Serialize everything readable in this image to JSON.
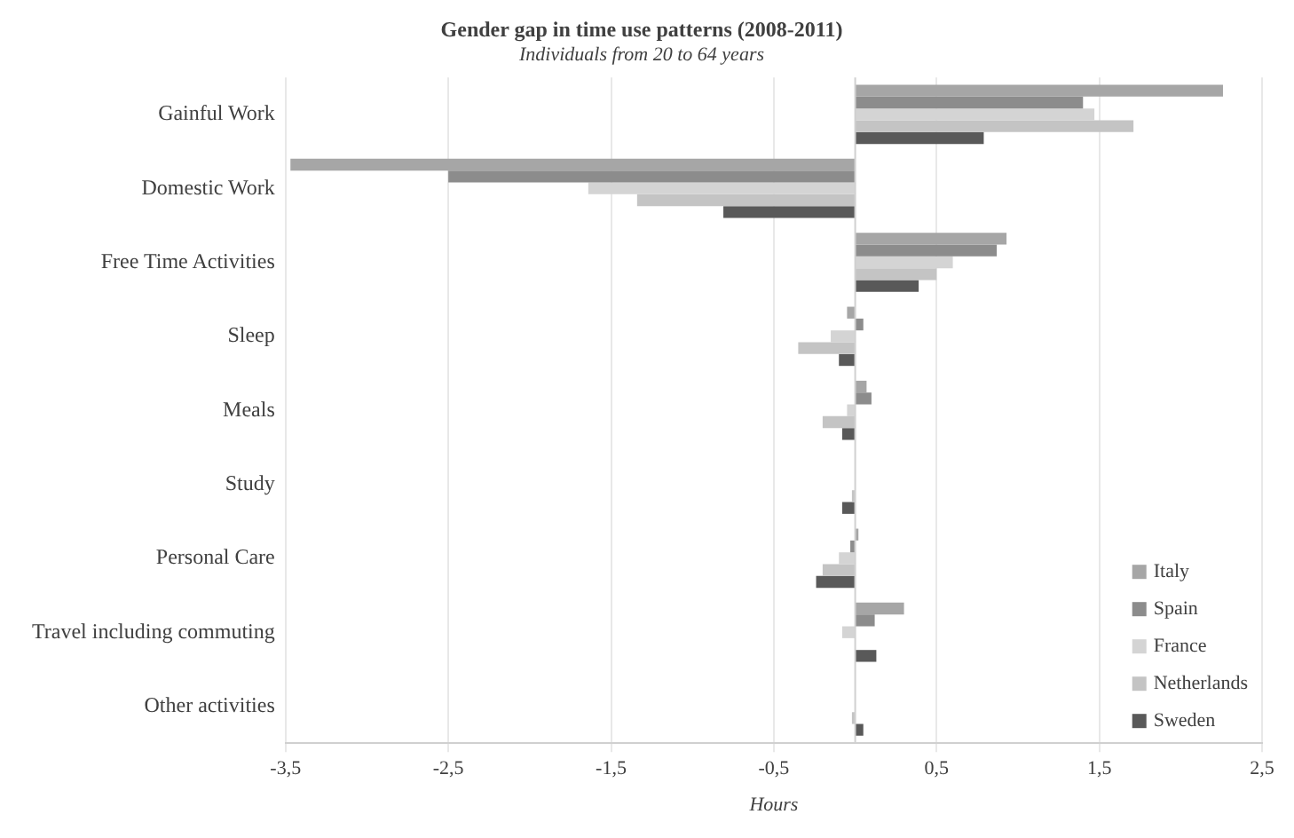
{
  "chart_data": {
    "type": "bar",
    "orientation": "horizontal",
    "title": "Gender gap in time use patterns (2008-2011)",
    "subtitle": "Individuals from 20 to 64 years",
    "xlabel": "Hours",
    "categories": [
      "Gainful Work",
      "Domestic Work",
      "Free Time Activities",
      "Sleep",
      "Meals",
      "Study",
      "Personal Care",
      "Travel including commuting",
      "Other activities"
    ],
    "series": [
      {
        "name": "Italy",
        "color": "#a6a6a6",
        "values": [
          2.26,
          -3.47,
          0.93,
          -0.05,
          0.07,
          null,
          0.02,
          0.3,
          0
        ]
      },
      {
        "name": "Spain",
        "color": "#8c8c8c",
        "values": [
          1.4,
          -2.5,
          0.87,
          0.05,
          0.1,
          0,
          -0.03,
          0.12,
          0
        ]
      },
      {
        "name": "France",
        "color": "#d4d4d4",
        "values": [
          1.47,
          -1.64,
          0.6,
          -0.15,
          -0.05,
          null,
          -0.1,
          -0.08,
          null
        ]
      },
      {
        "name": "Netherlands",
        "color": "#c4c4c4",
        "values": [
          1.71,
          -1.34,
          0.5,
          -0.35,
          -0.2,
          -0.02,
          -0.2,
          0,
          -0.02
        ]
      },
      {
        "name": "Sweden",
        "color": "#595959",
        "values": [
          0.79,
          -0.81,
          0.39,
          -0.1,
          -0.08,
          -0.08,
          -0.24,
          0.13,
          0.05
        ]
      }
    ],
    "xlim": [
      -3.5,
      2.5
    ],
    "xticks": [
      {
        "value": -3.5,
        "label": "-3,5"
      },
      {
        "value": -2.5,
        "label": "-2,5"
      },
      {
        "value": -1.5,
        "label": "-1,5"
      },
      {
        "value": -0.5,
        "label": "-0,5"
      },
      {
        "value": 0.5,
        "label": "0,5"
      },
      {
        "value": 1.5,
        "label": "1,5"
      },
      {
        "value": 2.5,
        "label": "2,5"
      }
    ],
    "grid": "x",
    "legend": "bottom right"
  }
}
